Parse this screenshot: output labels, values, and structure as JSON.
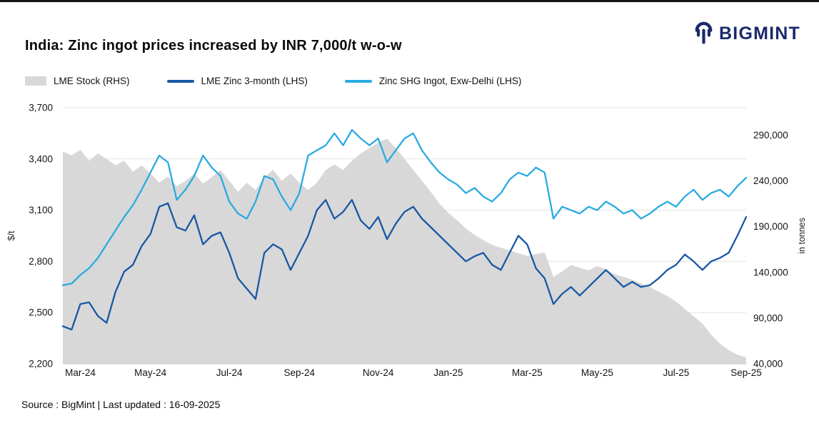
{
  "header": {
    "title": "India: Zinc ingot prices increased by INR 7,000/t w-o-w",
    "brand": "BIGMINT",
    "brand_color": "#1a2a6c"
  },
  "legend": {
    "items": [
      {
        "label": "LME Stock (RHS)",
        "swatch": "area",
        "color": "#d8d8d8"
      },
      {
        "label": "LME Zinc 3-month (LHS)",
        "swatch": "line",
        "color": "#1857a6"
      },
      {
        "label": "Zinc SHG Ingot, Exw-Delhi (LHS)",
        "swatch": "line",
        "color": "#29abe2"
      }
    ]
  },
  "footer": {
    "source": "Source : BigMint | Last updated : 16-09-2025"
  },
  "chart_data": {
    "type": "line",
    "title": "India: Zinc ingot prices increased by INR 7,000/t w-o-w",
    "legend_position": "top",
    "grid": true,
    "xlabel": "",
    "x_ticks": [
      {
        "i": 2,
        "l": "Mar-24"
      },
      {
        "i": 10,
        "l": "May-24"
      },
      {
        "i": 19,
        "l": "Jul-24"
      },
      {
        "i": 27,
        "l": "Sep-24"
      },
      {
        "i": 36,
        "l": "Nov-24"
      },
      {
        "i": 44,
        "l": "Jan-25"
      },
      {
        "i": 53,
        "l": "Mar-25"
      },
      {
        "i": 61,
        "l": "May-25"
      },
      {
        "i": 70,
        "l": "Jul-25"
      },
      {
        "i": 78,
        "l": "Sep-25"
      }
    ],
    "lhs_axis": {
      "label": "$/t",
      "range": [
        2200,
        3700
      ],
      "ticks": [
        {
          "v": 3700,
          "l": "3,700"
        },
        {
          "v": 3400,
          "l": "3,400"
        },
        {
          "v": 3100,
          "l": "3,100"
        },
        {
          "v": 2800,
          "l": "2,800"
        },
        {
          "v": 2500,
          "l": "2,500"
        },
        {
          "v": 2200,
          "l": "2,200"
        }
      ]
    },
    "rhs_axis": {
      "label": "in tonnes",
      "range": [
        40000,
        320000
      ],
      "ticks": [
        {
          "v": 290000,
          "l": "290,000"
        },
        {
          "v": 240000,
          "l": "240,000"
        },
        {
          "v": 190000,
          "l": "190,000"
        },
        {
          "v": 140000,
          "l": "140,000"
        },
        {
          "v": 90000,
          "l": "90,000"
        },
        {
          "v": 40000,
          "l": "40,000"
        }
      ]
    },
    "series": [
      {
        "id": "lme-stock",
        "name": "LME Stock (RHS)",
        "axis": "rhs",
        "type": "area",
        "color": "#d8d8d8",
        "values": [
          272000,
          268000,
          274000,
          262000,
          270000,
          264000,
          257000,
          262000,
          250000,
          257000,
          248000,
          238000,
          245000,
          234000,
          240000,
          248000,
          237000,
          244000,
          252000,
          240000,
          228000,
          238000,
          230000,
          244000,
          252000,
          240000,
          248000,
          238000,
          230000,
          238000,
          252000,
          258000,
          252000,
          262000,
          270000,
          276000,
          282000,
          286000,
          276000,
          264000,
          252000,
          240000,
          228000,
          215000,
          205000,
          197000,
          188000,
          181000,
          175000,
          170000,
          167000,
          164000,
          161000,
          158000,
          160000,
          162000,
          135000,
          141000,
          148000,
          145000,
          142000,
          147000,
          143000,
          138000,
          135000,
          132000,
          128000,
          124000,
          119000,
          114000,
          108000,
          100000,
          92000,
          84000,
          72000,
          62000,
          55000,
          50000,
          47000
        ]
      },
      {
        "id": "lme-zinc-3month",
        "name": "LME Zinc 3-month (LHS)",
        "axis": "lhs",
        "type": "line",
        "color": "#1857a6",
        "values": [
          2420,
          2400,
          2550,
          2560,
          2480,
          2440,
          2620,
          2740,
          2780,
          2890,
          2960,
          3120,
          3140,
          3000,
          2980,
          3070,
          2900,
          2950,
          2970,
          2850,
          2700,
          2640,
          2580,
          2850,
          2900,
          2870,
          2750,
          2850,
          2950,
          3100,
          3160,
          3050,
          3090,
          3160,
          3040,
          2990,
          3060,
          2930,
          3020,
          3090,
          3120,
          3050,
          3000,
          2950,
          2900,
          2850,
          2800,
          2830,
          2850,
          2780,
          2750,
          2850,
          2950,
          2900,
          2760,
          2700,
          2550,
          2610,
          2650,
          2600,
          2650,
          2700,
          2750,
          2700,
          2650,
          2680,
          2650,
          2660,
          2700,
          2750,
          2780,
          2840,
          2800,
          2750,
          2800,
          2820,
          2850,
          2950,
          3060
        ]
      },
      {
        "id": "zinc-shg-ingot",
        "name": "Zinc SHG Ingot, Exw-Delhi (LHS)",
        "axis": "lhs",
        "type": "line",
        "color": "#29abe2",
        "values": [
          2660,
          2670,
          2720,
          2760,
          2820,
          2900,
          2980,
          3060,
          3130,
          3220,
          3320,
          3420,
          3380,
          3160,
          3220,
          3300,
          3420,
          3350,
          3300,
          3150,
          3080,
          3050,
          3150,
          3300,
          3280,
          3180,
          3100,
          3200,
          3420,
          3450,
          3480,
          3550,
          3480,
          3570,
          3520,
          3480,
          3520,
          3380,
          3450,
          3520,
          3550,
          3450,
          3380,
          3320,
          3280,
          3250,
          3200,
          3230,
          3180,
          3150,
          3200,
          3280,
          3320,
          3300,
          3350,
          3320,
          3050,
          3120,
          3100,
          3080,
          3120,
          3100,
          3150,
          3120,
          3080,
          3100,
          3050,
          3080,
          3120,
          3150,
          3120,
          3180,
          3220,
          3160,
          3200,
          3220,
          3180,
          3240,
          3290
        ]
      }
    ]
  }
}
